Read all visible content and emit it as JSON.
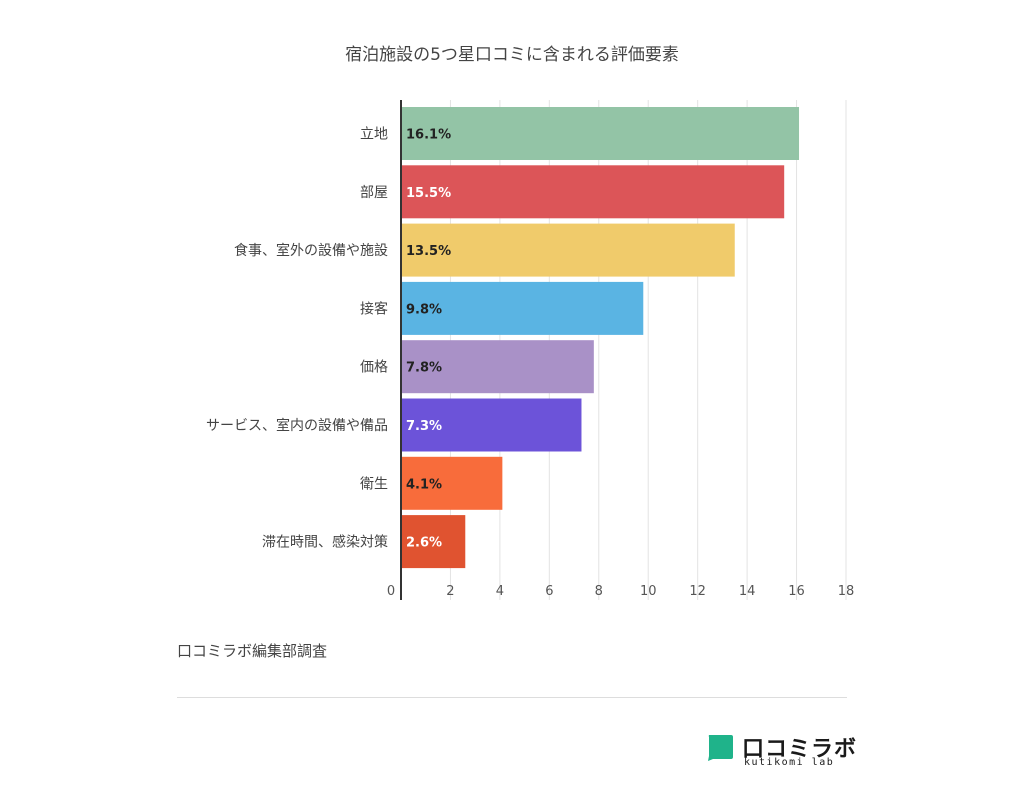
{
  "chart_data": {
    "type": "bar",
    "orientation": "horizontal",
    "title": "宿泊施設の5つ星口コミに含まれる評価要素",
    "categories": [
      "立地",
      "部屋",
      "食事、室外の設備や施設",
      "接客",
      "価格",
      "サービス、室内の設備や備品",
      "衛生",
      "滞在時間、感染対策"
    ],
    "values": [
      16.1,
      15.5,
      13.5,
      9.8,
      7.8,
      7.3,
      4.1,
      2.6
    ],
    "data_labels": [
      "16.1%",
      "15.5%",
      "13.5%",
      "9.8%",
      "7.8%",
      "7.3%",
      "4.1%",
      "2.6%"
    ],
    "bar_colors": [
      "#93c4a6",
      "#dc5558",
      "#f0cb6b",
      "#5ab4e3",
      "#a991c7",
      "#6c53d9",
      "#f86c3b",
      "#e05330"
    ],
    "label_colors": [
      "#222222",
      "#ffffff",
      "#222222",
      "#222222",
      "#222222",
      "#ffffff",
      "#222222",
      "#ffffff"
    ],
    "xticks": [
      "0",
      "2",
      "4",
      "6",
      "8",
      "10",
      "12",
      "14",
      "16",
      "18"
    ],
    "xlim": [
      0,
      18
    ],
    "xlabel": "",
    "ylabel": "",
    "grid": true,
    "legend": "none"
  },
  "source": "口コミラボ編集部調査",
  "logo": {
    "jp": "口コミラボ",
    "en": "kutikomi lab",
    "color": "#1fb38a"
  }
}
